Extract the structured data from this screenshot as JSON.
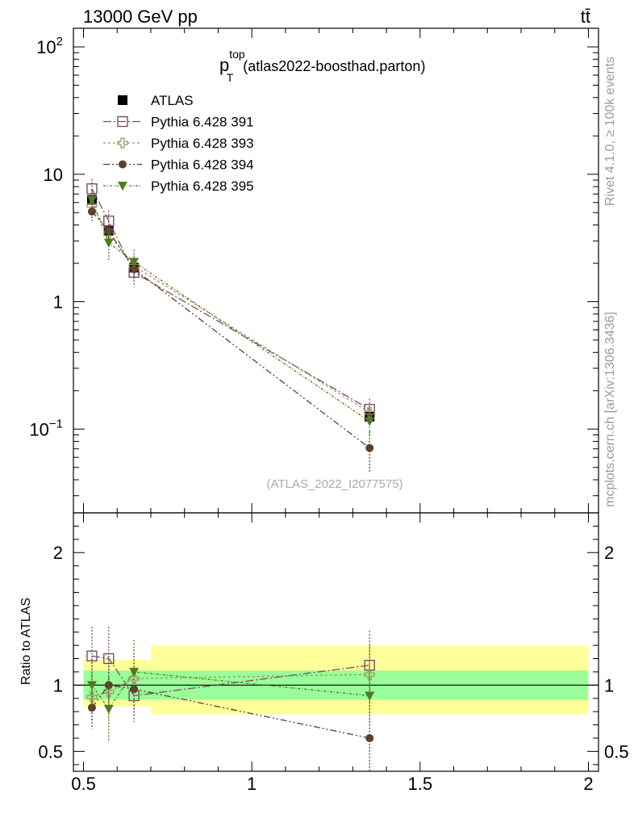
{
  "header": {
    "energy_label": "13000 GeV pp",
    "process_label": "tt̄"
  },
  "side_labels": {
    "rivet": "Rivet 4.1.0, ≥ 100k events",
    "mcplots": "mcplots.cern.ch [arXiv:1306.3436]"
  },
  "chart_data": {
    "type": "line",
    "title_main": "p",
    "title_sup": "top",
    "title_sub": "T",
    "title_rest": "(atlas2022-boosthad.parton)",
    "watermark": "(ATLAS_2022_I2077575)",
    "x": [
      0.525,
      0.575,
      0.65,
      1.35
    ],
    "xlim": [
      0.47,
      2.03
    ],
    "xticks": [
      0.5,
      1,
      1.5,
      2
    ],
    "xticklabels": [
      "0.5",
      "1",
      "1.5",
      "2"
    ],
    "main_panel": {
      "yscale": "log",
      "ylim": [
        0.022,
        140
      ],
      "yticklabels": [
        {
          "base": "10",
          "exp": "2",
          "value": 100
        },
        {
          "base": "10",
          "exp": "",
          "value": 10
        },
        {
          "base": "1",
          "exp": "",
          "value": 1
        },
        {
          "base": "10",
          "exp": "−1",
          "value": 0.1
        }
      ]
    },
    "ratio_panel": {
      "ylabel": "Ratio to ATLAS",
      "ylim": [
        0.35,
        2.3
      ],
      "yticklabels": [
        {
          "label": "2",
          "value": 2
        },
        {
          "label": "1",
          "value": 1
        },
        {
          "label": "0.5",
          "value": 0.5
        }
      ],
      "bands": [
        {
          "x0": 0.5,
          "x1": 0.7,
          "yellow": [
            0.84,
            1.19
          ],
          "green": [
            0.89,
            1.11
          ]
        },
        {
          "x0": 0.7,
          "x1": 2.0,
          "yellow": [
            0.78,
            1.3
          ],
          "green": [
            0.89,
            1.11
          ]
        }
      ]
    },
    "series": [
      {
        "name": "ATLAS",
        "marker": "square-filled",
        "color": "#000000",
        "values": [
          6.3,
          3.6,
          1.85,
          0.125
        ],
        "err": [
          0.5,
          0.3,
          0.15,
          0.012
        ],
        "ratio": [
          1.0,
          1.0,
          1.0,
          1.0
        ]
      },
      {
        "name": "Pythia 6.428 391",
        "marker": "square-open",
        "color": "#7a4d64",
        "values": [
          7.7,
          4.3,
          1.7,
          0.143
        ],
        "err": [
          1.5,
          0.9,
          0.4,
          0.03
        ],
        "ratio": [
          1.22,
          1.2,
          0.92,
          1.15
        ],
        "ratio_err": [
          0.22,
          0.24,
          0.2,
          0.26
        ]
      },
      {
        "name": "Pythia 6.428 393",
        "marker": "cross-open",
        "color": "#a09060",
        "values": [
          5.7,
          3.4,
          1.9,
          0.135
        ],
        "err": [
          1.0,
          0.7,
          0.4,
          0.025
        ],
        "ratio": [
          0.91,
          0.95,
          1.05,
          1.08
        ],
        "ratio_err": [
          0.18,
          0.2,
          0.22,
          0.22
        ]
      },
      {
        "name": "Pythia 6.428 394",
        "marker": "circle-filled",
        "color": "#5c3f2e",
        "values": [
          5.1,
          3.6,
          1.8,
          0.071
        ],
        "err": [
          0.8,
          0.7,
          0.3,
          0.025
        ],
        "ratio": [
          0.83,
          1.0,
          0.97,
          0.6
        ],
        "ratio_err": [
          0.16,
          0.22,
          0.2,
          0.3
        ]
      },
      {
        "name": "Pythia 6.428 395",
        "marker": "triangle-down-filled",
        "color": "#4f7a1f",
        "values": [
          6.3,
          2.9,
          2.05,
          0.115
        ],
        "err": [
          1.2,
          0.8,
          0.5,
          0.025
        ],
        "ratio": [
          1.0,
          0.82,
          1.1,
          0.92
        ],
        "ratio_err": [
          0.2,
          0.24,
          0.24,
          0.22
        ]
      }
    ],
    "legend": [
      "ATLAS",
      "Pythia 6.428 391",
      "Pythia 6.428 393",
      "Pythia 6.428 394",
      "Pythia 6.428 395"
    ]
  }
}
